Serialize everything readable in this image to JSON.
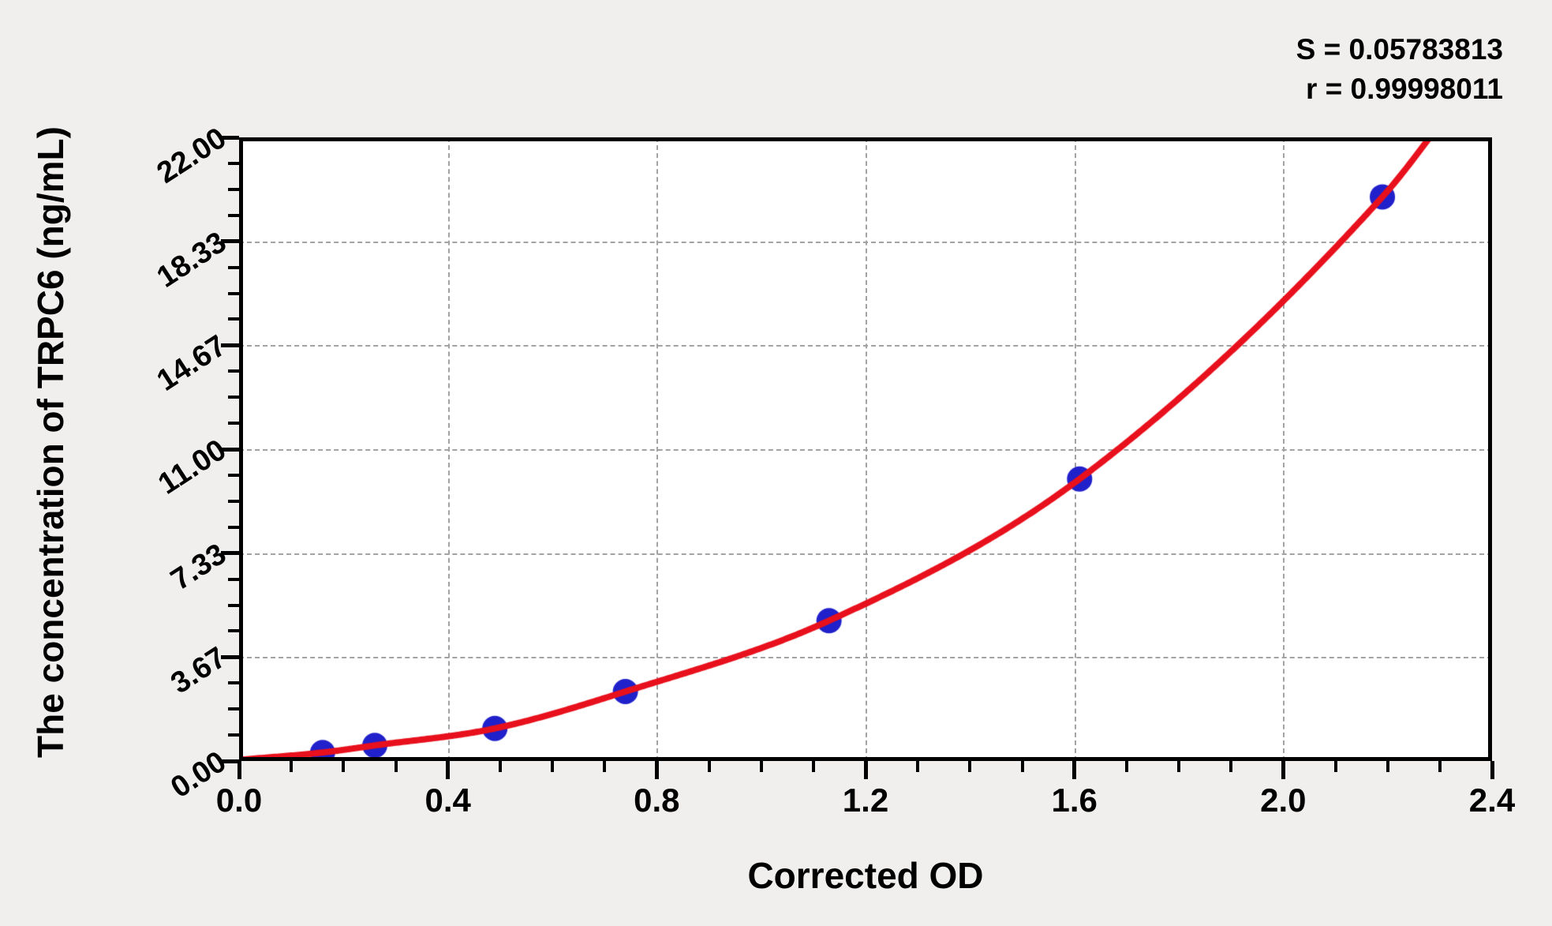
{
  "figure": {
    "background_color": "#f0efee",
    "annotation": {
      "lines": [
        "S = 0.05783813",
        "r = 0.99998011"
      ]
    }
  },
  "chart_data": {
    "type": "scatter",
    "title": "",
    "xlabel": "Corrected OD",
    "ylabel": "The concentration of TRPC6 (ng/mL)",
    "xlim": [
      0.0,
      2.4
    ],
    "ylim": [
      0.0,
      22.0
    ],
    "x_major_ticks": [
      0.0,
      0.4,
      0.8,
      1.2,
      1.6,
      2.0,
      2.4
    ],
    "x_tick_labels": [
      "0.0",
      "0.4",
      "0.8",
      "1.2",
      "1.6",
      "2.0",
      "2.4"
    ],
    "x_minor_step": 0.1,
    "y_major_ticks": [
      0.0,
      3.67,
      7.33,
      11.0,
      14.67,
      18.33,
      22.0
    ],
    "y_tick_labels": [
      "0.00",
      "3.67",
      "7.33",
      "11.00",
      "14.67",
      "18.33",
      "22.00"
    ],
    "y_minor_divisions_per_major": 4,
    "grid": {
      "style": "dashed",
      "color": "#a3a3a3",
      "on_major_ticks": true
    },
    "legend": "none",
    "series": [
      {
        "name": "standard-points",
        "type": "scatter",
        "marker": "circle",
        "color": "#2121cb",
        "x": [
          0.16,
          0.26,
          0.49,
          0.74,
          1.13,
          1.61,
          2.19
        ],
        "y": [
          0.3,
          0.55,
          1.15,
          2.45,
          4.95,
          9.95,
          19.9
        ]
      },
      {
        "name": "fit-curve",
        "type": "line",
        "color": "#e8101c",
        "points": [
          [
            0.0,
            0.04
          ],
          [
            0.16,
            0.3
          ],
          [
            0.26,
            0.55
          ],
          [
            0.49,
            1.15
          ],
          [
            0.74,
            2.45
          ],
          [
            1.13,
            4.95
          ],
          [
            1.61,
            9.95
          ],
          [
            2.19,
            19.9
          ],
          [
            2.33,
            23.2
          ]
        ]
      }
    ]
  }
}
